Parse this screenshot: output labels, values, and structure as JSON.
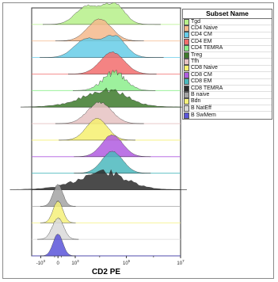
{
  "chart_data": {
    "type": "area",
    "subtype": "stacked-histograms",
    "xlabel": "CD2 PE",
    "x_scale": "biexponential",
    "x_ticks": [
      {
        "value": -1000,
        "label": "-10",
        "exp": "3"
      },
      {
        "value": 0,
        "label": "0",
        "exp": ""
      },
      {
        "value": 1000,
        "label": "10",
        "exp": "3"
      },
      {
        "value": 100000,
        "label": "10",
        "exp": "5"
      },
      {
        "value": 10000000,
        "label": "10",
        "exp": "7"
      }
    ],
    "legend_title": "Subset Name",
    "legend_position": "right",
    "series": [
      {
        "name": "Tgd",
        "color": "#b6f08a",
        "peak": 12000,
        "width": 0.4,
        "shape": "bimodal",
        "jagged": 0.1
      },
      {
        "name": "CD4 Naive",
        "color": "#f4b98c",
        "peak": 10000,
        "width": 0.3,
        "shape": "single",
        "jagged": 0.05
      },
      {
        "name": "CD4 CM",
        "color": "#66cce8",
        "peak": 12000,
        "width": 0.42,
        "shape": "bimodal",
        "jagged": 0.05
      },
      {
        "name": "CD4 EM",
        "color": "#f26d6d",
        "peak": 30000,
        "width": 0.3,
        "shape": "single",
        "jagged": 0.05
      },
      {
        "name": "CD4 TEMRA",
        "color": "#8cef8c",
        "peak": 35000,
        "width": 0.28,
        "shape": "single",
        "jagged": 0.35
      },
      {
        "name": "Treg",
        "color": "#3d7a2c",
        "peak": 12000,
        "width": 0.55,
        "shape": "broad",
        "jagged": 0.35
      },
      {
        "name": "Tfh",
        "color": "#e6c2c2",
        "peak": 10000,
        "width": 0.3,
        "shape": "single",
        "jagged": 0.1
      },
      {
        "name": "CD8 Naive",
        "color": "#f6f070",
        "peak": 8000,
        "width": 0.26,
        "shape": "single",
        "jagged": 0.05
      },
      {
        "name": "CD8 CM",
        "color": "#b05ce0",
        "peak": 30000,
        "width": 0.26,
        "shape": "single",
        "jagged": 0.05
      },
      {
        "name": "CD8 EM",
        "color": "#4bb8bd",
        "peak": 30000,
        "width": 0.26,
        "shape": "single",
        "jagged": 0.05
      },
      {
        "name": "CD8 TEMRA",
        "color": "#2c2c2c",
        "peak": 9000,
        "width": 0.6,
        "shape": "broad",
        "jagged": 0.35
      },
      {
        "name": "B naive",
        "color": "#a3a3a3",
        "peak": 0,
        "width": 0.12,
        "shape": "single",
        "jagged": 0.05
      },
      {
        "name": "Bdn",
        "color": "#f4f07a",
        "peak": 0,
        "width": 0.12,
        "shape": "single",
        "jagged": 0.05
      },
      {
        "name": "B NatEff",
        "color": "#d9d9d9",
        "peak": 0,
        "width": 0.14,
        "shape": "single",
        "jagged": 0.1
      },
      {
        "name": "B SwMem",
        "color": "#5a55d9",
        "peak": 0,
        "width": 0.12,
        "shape": "single",
        "jagged": 0.05
      }
    ]
  }
}
